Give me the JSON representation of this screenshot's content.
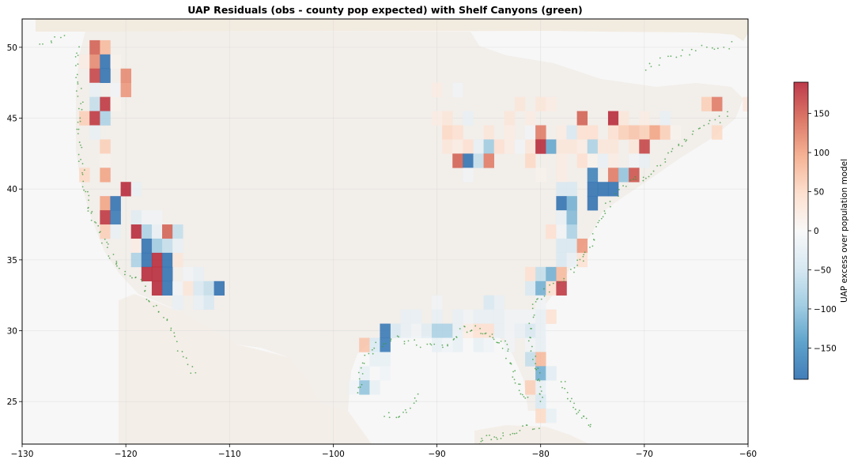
{
  "chart_data": {
    "type": "heatmap",
    "title": "UAP Residuals (obs - county pop expected) with Shelf Canyons (green)",
    "xlabel": "",
    "ylabel": "",
    "xlim": [
      -130,
      -60
    ],
    "ylim": [
      22,
      52
    ],
    "x_ticks": [
      -130,
      -120,
      -110,
      -100,
      -90,
      -80,
      -70,
      -60
    ],
    "y_ticks": [
      25,
      30,
      35,
      40,
      45,
      50
    ],
    "x_tick_labels": [
      "−130",
      "−120",
      "−110",
      "−100",
      "−90",
      "−80",
      "−70",
      "−60"
    ],
    "y_tick_labels": [
      "25",
      "30",
      "35",
      "40",
      "45",
      "50"
    ],
    "grid": true,
    "cell_size_deg": 1,
    "colormap": "RdBu_r",
    "colormap_stops": [
      "#2166ac",
      "#4393c3",
      "#92c5de",
      "#d1e5f0",
      "#f7f7f7",
      "#fddbc7",
      "#f4a582",
      "#d6604d",
      "#b2182b"
    ],
    "vmin": -190,
    "vmax": 190,
    "colorbar": {
      "label": "UAP excess over population model",
      "ticks": [
        150,
        100,
        50,
        0,
        -50,
        -100,
        -150
      ],
      "tick_labels": [
        "150",
        "100",
        "50",
        "0",
        "−50",
        "−100",
        "−150"
      ]
    },
    "overlay": {
      "name": "Shelf Canyons",
      "color": "#3a9a3a"
    },
    "cells": [
      [
        -123,
        50,
        150
      ],
      [
        -122,
        50,
        80
      ],
      [
        -124,
        49,
        20
      ],
      [
        -123,
        49,
        120
      ],
      [
        -122,
        49,
        -190
      ],
      [
        -121,
        49,
        10
      ],
      [
        -123,
        48,
        170
      ],
      [
        -122,
        48,
        -190
      ],
      [
        -120,
        48,
        120
      ],
      [
        -123,
        47,
        -20
      ],
      [
        -121,
        47,
        -10
      ],
      [
        -120,
        47,
        110
      ],
      [
        -123,
        46,
        -60
      ],
      [
        -122,
        46,
        180
      ],
      [
        -121,
        46,
        10
      ],
      [
        -124,
        45,
        60
      ],
      [
        -123,
        45,
        180
      ],
      [
        -122,
        45,
        -80
      ],
      [
        -123,
        44,
        -20
      ],
      [
        -122,
        43,
        60
      ],
      [
        -122,
        42,
        10
      ],
      [
        -124,
        41,
        50
      ],
      [
        -122,
        41,
        100
      ],
      [
        -120,
        40,
        190
      ],
      [
        -119,
        40,
        -20
      ],
      [
        -122,
        39,
        100
      ],
      [
        -121,
        39,
        -190
      ],
      [
        -119,
        38,
        -30
      ],
      [
        -118,
        38,
        -10
      ],
      [
        -122,
        38,
        180
      ],
      [
        -121,
        38,
        -180
      ],
      [
        -117,
        38,
        -10
      ],
      [
        -122,
        37,
        60
      ],
      [
        -121,
        37,
        -20
      ],
      [
        -119,
        37,
        190
      ],
      [
        -118,
        37,
        -80
      ],
      [
        -117,
        37,
        -20
      ],
      [
        -116,
        37,
        150
      ],
      [
        -115,
        37,
        -60
      ],
      [
        -119,
        36,
        20
      ],
      [
        -118,
        36,
        -190
      ],
      [
        -117,
        36,
        -90
      ],
      [
        -116,
        36,
        -60
      ],
      [
        -115,
        36,
        -20
      ],
      [
        -119,
        35,
        -80
      ],
      [
        -118,
        35,
        -190
      ],
      [
        -117,
        35,
        190
      ],
      [
        -116,
        35,
        -190
      ],
      [
        -115,
        35,
        30
      ],
      [
        -118,
        34,
        190
      ],
      [
        -117,
        34,
        190
      ],
      [
        -116,
        34,
        -190
      ],
      [
        -114,
        34,
        -10
      ],
      [
        -113,
        34,
        -20
      ],
      [
        -117,
        33,
        190
      ],
      [
        -116,
        33,
        -190
      ],
      [
        -115,
        33,
        -10
      ],
      [
        -114,
        33,
        30
      ],
      [
        -113,
        33,
        -40
      ],
      [
        -112,
        33,
        -60
      ],
      [
        -111,
        33,
        -190
      ],
      [
        -115,
        32,
        -20
      ],
      [
        -113,
        32,
        -20
      ],
      [
        -112,
        32,
        -40
      ],
      [
        -90,
        47,
        20
      ],
      [
        -88,
        47,
        -10
      ],
      [
        -82,
        46,
        30
      ],
      [
        -80,
        46,
        30
      ],
      [
        -79,
        46,
        20
      ],
      [
        -90,
        45,
        20
      ],
      [
        -89,
        45,
        30
      ],
      [
        -87,
        45,
        -20
      ],
      [
        -83,
        45,
        30
      ],
      [
        -81,
        45,
        20
      ],
      [
        -76,
        45,
        150
      ],
      [
        -73,
        45,
        190
      ],
      [
        -72,
        45,
        30
      ],
      [
        -70,
        45,
        20
      ],
      [
        -68,
        45,
        -20
      ],
      [
        -64,
        46,
        60
      ],
      [
        -63,
        46,
        130
      ],
      [
        -60,
        46,
        30
      ],
      [
        -89,
        44,
        50
      ],
      [
        -88,
        44,
        40
      ],
      [
        -85,
        44,
        30
      ],
      [
        -83,
        44,
        20
      ],
      [
        -81,
        44,
        -10
      ],
      [
        -80,
        44,
        130
      ],
      [
        -78,
        44,
        20
      ],
      [
        -77,
        44,
        -40
      ],
      [
        -76,
        44,
        40
      ],
      [
        -75,
        44,
        40
      ],
      [
        -73,
        44,
        40
      ],
      [
        -72,
        44,
        60
      ],
      [
        -71,
        44,
        70
      ],
      [
        -70,
        44,
        60
      ],
      [
        -69,
        44,
        100
      ],
      [
        -68,
        44,
        60
      ],
      [
        -67,
        44,
        10
      ],
      [
        -63,
        44,
        50
      ],
      [
        -89,
        43,
        30
      ],
      [
        -88,
        43,
        20
      ],
      [
        -87,
        43,
        40
      ],
      [
        -86,
        43,
        -20
      ],
      [
        -85,
        43,
        -90
      ],
      [
        -84,
        43,
        40
      ],
      [
        -83,
        43,
        20
      ],
      [
        -82,
        43,
        -10
      ],
      [
        -81,
        43,
        30
      ],
      [
        -80,
        43,
        190
      ],
      [
        -79,
        43,
        -130
      ],
      [
        -78,
        43,
        30
      ],
      [
        -77,
        43,
        30
      ],
      [
        -76,
        43,
        20
      ],
      [
        -75,
        43,
        -80
      ],
      [
        -74,
        43,
        30
      ],
      [
        -73,
        43,
        30
      ],
      [
        -71,
        43,
        30
      ],
      [
        -70,
        43,
        170
      ],
      [
        -88,
        42,
        150
      ],
      [
        -87,
        42,
        -190
      ],
      [
        -86,
        42,
        -60
      ],
      [
        -85,
        42,
        130
      ],
      [
        -81,
        42,
        50
      ],
      [
        -78,
        42,
        20
      ],
      [
        -76,
        42,
        40
      ],
      [
        -75,
        42,
        10
      ],
      [
        -74,
        42,
        -20
      ],
      [
        -73,
        42,
        20
      ],
      [
        -71,
        42,
        -10
      ],
      [
        -70,
        42,
        -20
      ],
      [
        -87,
        41,
        -10
      ],
      [
        -80,
        41,
        10
      ],
      [
        -78,
        41,
        20
      ],
      [
        -75,
        41,
        -170
      ],
      [
        -73,
        41,
        130
      ],
      [
        -72,
        41,
        -100
      ],
      [
        -71,
        41,
        160
      ],
      [
        -78,
        40,
        -40
      ],
      [
        -77,
        40,
        -40
      ],
      [
        -75,
        40,
        -190
      ],
      [
        -74,
        40,
        -190
      ],
      [
        -73,
        40,
        -190
      ],
      [
        -78,
        39,
        -190
      ],
      [
        -77,
        39,
        -120
      ],
      [
        -75,
        39,
        -190
      ],
      [
        -78,
        38,
        -20
      ],
      [
        -77,
        38,
        -110
      ],
      [
        -79,
        37,
        40
      ],
      [
        -78,
        37,
        -10
      ],
      [
        -77,
        37,
        -80
      ],
      [
        -78,
        36,
        -40
      ],
      [
        -77,
        36,
        -40
      ],
      [
        -76,
        36,
        110
      ],
      [
        -78,
        35,
        -40
      ],
      [
        -77,
        35,
        -20
      ],
      [
        -76,
        35,
        40
      ],
      [
        -81,
        34,
        40
      ],
      [
        -80,
        34,
        -60
      ],
      [
        -79,
        34,
        -120
      ],
      [
        -78,
        34,
        80
      ],
      [
        -81,
        33,
        -40
      ],
      [
        -80,
        33,
        -120
      ],
      [
        -79,
        33,
        40
      ],
      [
        -78,
        33,
        180
      ],
      [
        -90,
        32,
        -10
      ],
      [
        -85,
        32,
        -40
      ],
      [
        -84,
        32,
        -20
      ],
      [
        -80,
        32,
        -10
      ],
      [
        -79,
        31,
        40
      ],
      [
        -93,
        31,
        -20
      ],
      [
        -92,
        31,
        -20
      ],
      [
        -90,
        31,
        -20
      ],
      [
        -88,
        31,
        -20
      ],
      [
        -87,
        31,
        -10
      ],
      [
        -86,
        31,
        -20
      ],
      [
        -85,
        31,
        -20
      ],
      [
        -84,
        31,
        -20
      ],
      [
        -83,
        31,
        -10
      ],
      [
        -82,
        31,
        -10
      ],
      [
        -81,
        31,
        -10
      ],
      [
        -80,
        31,
        -20
      ],
      [
        -94,
        30,
        -40
      ],
      [
        -93,
        30,
        -20
      ],
      [
        -92,
        30,
        -10
      ],
      [
        -91,
        30,
        -30
      ],
      [
        -90,
        30,
        -80
      ],
      [
        -89,
        30,
        -80
      ],
      [
        -88,
        30,
        -20
      ],
      [
        -87,
        30,
        20
      ],
      [
        -86,
        30,
        40
      ],
      [
        -85,
        30,
        40
      ],
      [
        -84,
        30,
        -20
      ],
      [
        -83,
        30,
        -10
      ],
      [
        -82,
        30,
        -20
      ],
      [
        -81,
        30,
        -40
      ],
      [
        -80,
        30,
        -20
      ],
      [
        -95,
        30,
        -180
      ],
      [
        -97,
        29,
        70
      ],
      [
        -96,
        29,
        -40
      ],
      [
        -95,
        29,
        -180
      ],
      [
        -90,
        29,
        -20
      ],
      [
        -89,
        29,
        -10
      ],
      [
        -88,
        29,
        -20
      ],
      [
        -86,
        29,
        -20
      ],
      [
        -85,
        29,
        -10
      ],
      [
        -83,
        29,
        -10
      ],
      [
        -81,
        29,
        -10
      ],
      [
        -80,
        29,
        -20
      ],
      [
        -96,
        28,
        -20
      ],
      [
        -95,
        28,
        -20
      ],
      [
        -81,
        28,
        -60
      ],
      [
        -80,
        28,
        80
      ],
      [
        -97,
        27,
        -20
      ],
      [
        -95,
        27,
        -10
      ],
      [
        -80,
        27,
        -120
      ],
      [
        -79,
        27,
        -30
      ],
      [
        -98,
        26,
        -10
      ],
      [
        -97,
        26,
        -100
      ],
      [
        -96,
        26,
        -20
      ],
      [
        -81,
        26,
        60
      ],
      [
        -80,
        26,
        -20
      ],
      [
        -80,
        25,
        -40
      ],
      [
        -80,
        24,
        50
      ],
      [
        -79,
        24,
        -20
      ]
    ]
  }
}
